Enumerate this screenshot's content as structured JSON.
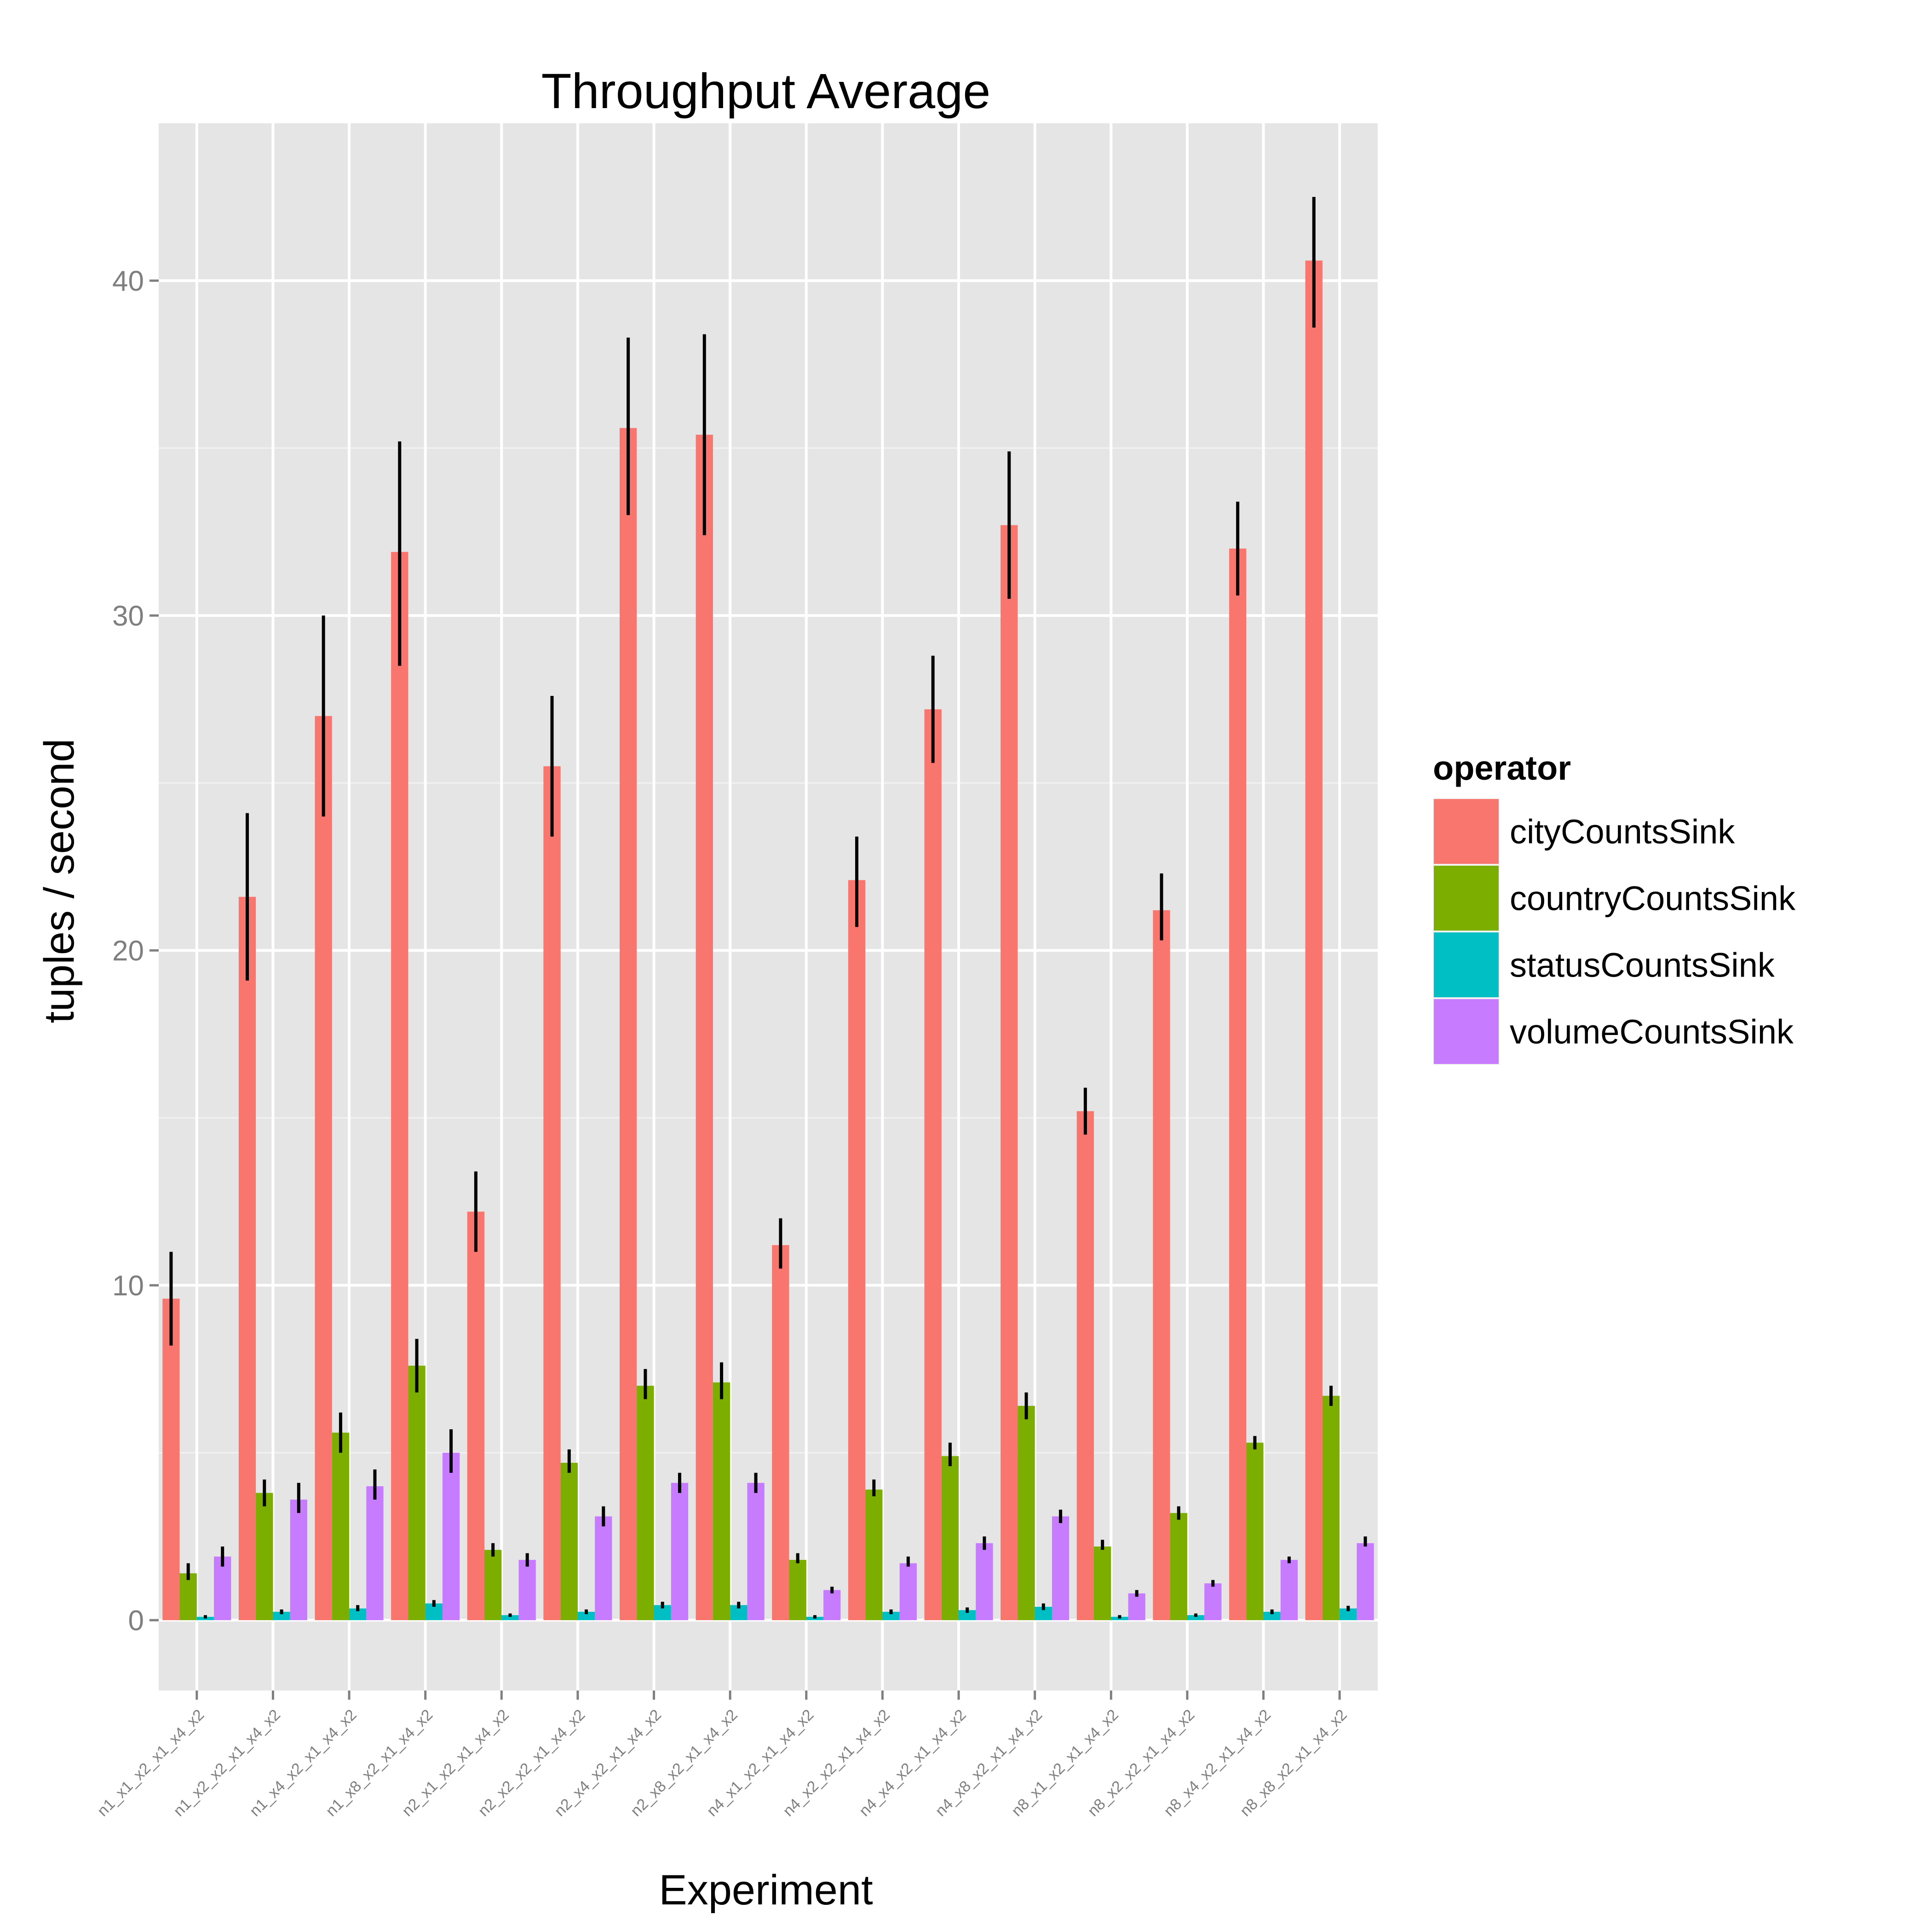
{
  "chart_data": {
    "type": "bar",
    "title": "Throughput Average",
    "xlabel": "Experiment",
    "ylabel": "tuples / second",
    "ylim": [
      -2.1,
      44.7
    ],
    "yticks": [
      0,
      10,
      20,
      30,
      40
    ],
    "grid": true,
    "legend_title": "operator",
    "legend_position": "right",
    "categories": [
      "n1_x1_x2_x1_x4_x2",
      "n1_x2_x2_x1_x4_x2",
      "n1_x4_x2_x1_x4_x2",
      "n1_x8_x2_x1_x4_x2",
      "n2_x1_x2_x1_x4_x2",
      "n2_x2_x2_x1_x4_x2",
      "n2_x4_x2_x1_x4_x2",
      "n2_x8_x2_x1_x4_x2",
      "n4_x1_x2_x1_x4_x2",
      "n4_x2_x2_x1_x4_x2",
      "n4_x4_x2_x1_x4_x2",
      "n4_x8_x2_x1_x4_x2",
      "n8_x1_x2_x1_x4_x2",
      "n8_x2_x2_x1_x4_x2",
      "n8_x4_x2_x1_x4_x2",
      "n8_x8_x2_x1_x4_x2"
    ],
    "series": [
      {
        "name": "cityCountsSink",
        "color": "#F8766D",
        "values": [
          9.6,
          21.6,
          27.0,
          31.9,
          12.2,
          25.5,
          35.6,
          35.4,
          11.2,
          22.1,
          27.2,
          32.7,
          15.2,
          21.2,
          32.0,
          40.6
        ],
        "err_low": [
          8.2,
          19.1,
          24.0,
          28.5,
          11.0,
          23.4,
          33.0,
          32.4,
          10.5,
          20.7,
          25.6,
          30.5,
          14.5,
          20.3,
          30.6,
          38.6
        ],
        "err_high": [
          11.0,
          24.1,
          30.0,
          35.2,
          13.4,
          27.6,
          38.3,
          38.4,
          12.0,
          23.4,
          28.8,
          34.9,
          15.9,
          22.3,
          33.4,
          42.5
        ]
      },
      {
        "name": "countryCountsSink",
        "color": "#7CAE00",
        "values": [
          1.4,
          3.8,
          5.6,
          7.6,
          2.1,
          4.7,
          7.0,
          7.1,
          1.8,
          3.9,
          4.9,
          6.4,
          2.2,
          3.2,
          5.3,
          6.7
        ],
        "err_low": [
          1.2,
          3.4,
          5.0,
          6.8,
          1.9,
          4.4,
          6.6,
          6.6,
          1.7,
          3.7,
          4.6,
          6.0,
          2.1,
          3.0,
          5.1,
          6.4
        ],
        "err_high": [
          1.7,
          4.2,
          6.2,
          8.4,
          2.3,
          5.1,
          7.5,
          7.7,
          2.0,
          4.2,
          5.3,
          6.8,
          2.4,
          3.4,
          5.5,
          7.0
        ]
      },
      {
        "name": "statusCountsSink",
        "color": "#00BFC4",
        "values": [
          0.1,
          0.25,
          0.35,
          0.5,
          0.15,
          0.25,
          0.45,
          0.45,
          0.1,
          0.25,
          0.3,
          0.4,
          0.1,
          0.15,
          0.25,
          0.35
        ],
        "err_low": [
          0.05,
          0.18,
          0.27,
          0.4,
          0.1,
          0.18,
          0.35,
          0.35,
          0.05,
          0.18,
          0.22,
          0.3,
          0.05,
          0.1,
          0.18,
          0.27
        ],
        "err_high": [
          0.15,
          0.32,
          0.45,
          0.6,
          0.2,
          0.32,
          0.55,
          0.55,
          0.15,
          0.32,
          0.38,
          0.5,
          0.15,
          0.2,
          0.32,
          0.43
        ]
      },
      {
        "name": "volumeCountsSink",
        "color": "#C77CFF",
        "values": [
          1.9,
          3.6,
          4.0,
          5.0,
          1.8,
          3.1,
          4.1,
          4.1,
          0.9,
          1.7,
          2.3,
          3.1,
          0.8,
          1.1,
          1.8,
          2.3
        ],
        "err_low": [
          1.6,
          3.2,
          3.6,
          4.4,
          1.6,
          2.8,
          3.8,
          3.8,
          0.8,
          1.6,
          2.1,
          2.9,
          0.7,
          1.0,
          1.7,
          2.2
        ],
        "err_high": [
          2.2,
          4.1,
          4.5,
          5.7,
          2.0,
          3.4,
          4.4,
          4.4,
          1.0,
          1.9,
          2.5,
          3.3,
          0.9,
          1.2,
          1.9,
          2.5
        ]
      }
    ]
  }
}
